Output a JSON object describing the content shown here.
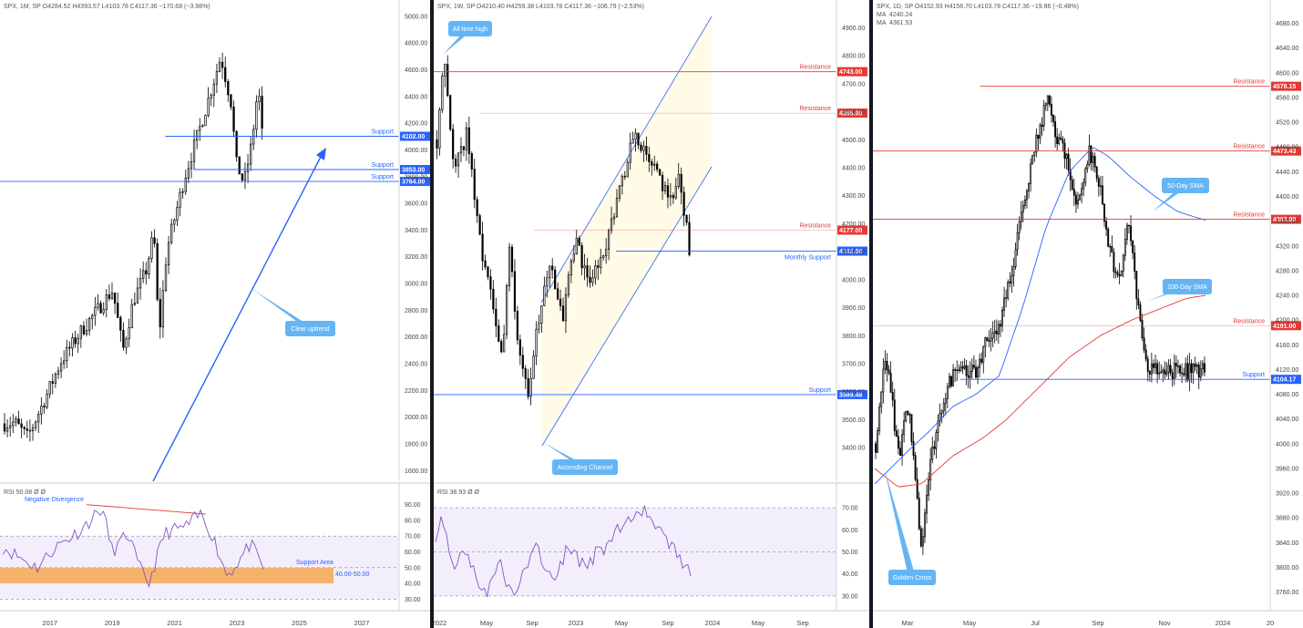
{
  "accent": {
    "support": "#2962ff",
    "resistance": "#e53935",
    "rsi": "#7e57c2",
    "callout": "#64b5f6",
    "channel_fill": "#fffbe6",
    "rsi_band": "#f3eefc",
    "support_area": "#f5b26b",
    "sma50": "#2962ff",
    "sma200": "#e53935"
  },
  "chart_data": [
    {
      "id": "monthly",
      "type": "candlestick",
      "header": "SPX, 1M, SP  O4284.52  H4393.57  L4103.78  C4117.36  −170.68 (−3.98%)",
      "ylim": [
        1520,
        5040
      ],
      "yticks": [
        "5000.00",
        "4800.00",
        "4600.00",
        "4400.00",
        "4200.00",
        "4000.00",
        "3800.00",
        "3600.00",
        "3400.00",
        "3200.00",
        "3000.00",
        "2800.00",
        "2600.00",
        "2400.00",
        "2200.00",
        "2000.00",
        "1800.00",
        "1600.00"
      ],
      "x_start": 2015.4,
      "x_end": 2028.2,
      "xticks": [
        "2017",
        "2019",
        "2021",
        "2023",
        "2025",
        "2027"
      ],
      "levels": [
        {
          "label": "Support",
          "value": 4102,
          "tag": "4102.00",
          "color": "#2962ff",
          "from": 2020.7
        },
        {
          "label": "Support",
          "value": 3853,
          "tag": "3853.00",
          "color": "#2962ff",
          "from": 2021.6
        },
        {
          "label": "Support",
          "value": 3764,
          "tag": "3764.00",
          "color": "#2962ff",
          "from": 2015.4
        }
      ],
      "callouts": [
        "Clear uptrend"
      ],
      "rsi": {
        "header": "RSI  50.08  Ø  Ø",
        "value": 50.08,
        "ylim": [
          25,
          95
        ],
        "yticks": [
          "90.00",
          "80.00",
          "70.00",
          "60.00",
          "50.00",
          "40.00",
          "30.00"
        ],
        "band": [
          30,
          70
        ],
        "support_area": [
          40,
          50
        ],
        "support_area_label": "Support Area",
        "support_area_range": "40.00-50.00",
        "divergence_label": "Negative Divergence"
      }
    },
    {
      "id": "weekly",
      "type": "candlestick",
      "header": "SPX, 1W, SP  O4210.40  H4259.38  L4103.78  C4117.36  −106.79 (−2.53%)",
      "ylim": [
        3280,
        4960
      ],
      "yticks": [
        "4900.00",
        "4800.00",
        "4700.00",
        "4600.00",
        "4500.00",
        "4400.00",
        "4300.00",
        "4200.00",
        "4100.00",
        "4000.00",
        "3900.00",
        "3800.00",
        "3700.00",
        "3600.00",
        "3500.00",
        "3400.00"
      ],
      "xticks": [
        "2022",
        "May",
        "Sep",
        "2023",
        "May",
        "Sep",
        "2024",
        "May",
        "Sep"
      ],
      "levels": [
        {
          "label": "Resistance",
          "value": 4743,
          "tag": "4743.00",
          "color": "#e53935"
        },
        {
          "label": "Resistance",
          "value": 4595,
          "tag": "4595.00",
          "color": "#e53935"
        },
        {
          "label": "Resistance",
          "value": 4177,
          "tag": "4177.00",
          "color": "#e53935"
        },
        {
          "label": "Monthly Support",
          "value": 4102,
          "tag": "4102.00",
          "color": "#2962ff"
        },
        {
          "label": "Support",
          "value": 3589.48,
          "tag": "3589.48",
          "color": "#2962ff"
        }
      ],
      "callouts": [
        "All time high",
        "Ascending Channel"
      ],
      "rsi": {
        "header": "RSI  38.93  Ø  Ø",
        "value": 38.93,
        "ylim": [
          25,
          75
        ],
        "yticks": [
          "70.00",
          "60.00",
          "50.00",
          "40.00",
          "30.00"
        ],
        "band": [
          30,
          70
        ]
      }
    },
    {
      "id": "daily",
      "type": "candlestick",
      "header": "SPX, 1D, SP  O4152.93  H4156.70  L4103.78  C4117.36  −19.86 (−0.48%)",
      "ma_lines": [
        {
          "label": "MA",
          "value": "4240.24",
          "color": "#e53935"
        },
        {
          "label": "MA",
          "value": "4361.53",
          "color": "#2962ff"
        }
      ],
      "ylim": [
        3730,
        4700
      ],
      "yticks": [
        "4680.00",
        "4640.00",
        "4600.00",
        "4560.00",
        "4520.00",
        "4480.00",
        "4440.00",
        "4400.00",
        "4360.00",
        "4320.00",
        "4280.00",
        "4240.00",
        "4200.00",
        "4160.00",
        "4120.00",
        "4080.00",
        "4040.00",
        "4000.00",
        "3960.00",
        "3920.00",
        "3880.00",
        "3840.00",
        "3800.00",
        "3760.00"
      ],
      "xticks": [
        "Mar",
        "May",
        "Jul",
        "Sep",
        "Nov",
        "2024",
        "20"
      ],
      "levels": [
        {
          "label": "Resistance",
          "value": 4578.15,
          "tag": "4578.15",
          "color": "#e53935",
          "from": 0.27
        },
        {
          "label": "Resistance",
          "value": 4473.43,
          "tag": "4473.43",
          "color": "#e53935",
          "from": 0.0
        },
        {
          "label": "Resistance",
          "value": 4363,
          "tag": "4363.00",
          "color": "#e53935",
          "from": 0.0
        },
        {
          "label": "Resistance",
          "value": 4191,
          "tag": "4191.00",
          "color": "#e53935",
          "from": 0.0
        },
        {
          "label": "Support",
          "value": 4104.17,
          "tag": "4104.17",
          "color": "#2962ff",
          "from": 0.22
        }
      ],
      "callouts": [
        "50-Day SMA",
        "200-Day SMA",
        "Golden Cross"
      ]
    }
  ]
}
